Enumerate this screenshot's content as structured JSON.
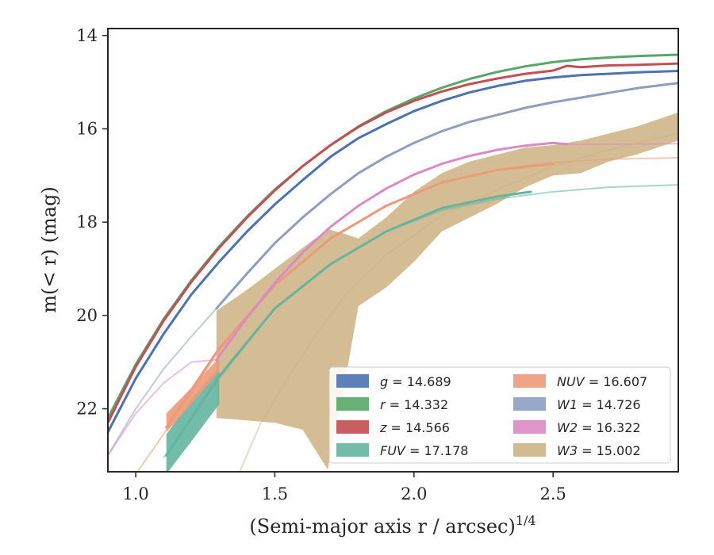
{
  "chart_data": {
    "type": "line",
    "title": "",
    "xlabel": "(Semi-major axis r / arcsec)",
    "xlabel_sup": "1/4",
    "ylabel": "m(< r) (mag)",
    "xlim": [
      0.9,
      2.95
    ],
    "ylim": [
      23.35,
      13.85
    ],
    "y_inverted": true,
    "grid": false,
    "legend_position": "lower-right",
    "xticks": [
      {
        "value": 1.0,
        "label": "1.0"
      },
      {
        "value": 1.5,
        "label": "1.5"
      },
      {
        "value": 2.0,
        "label": "2.0"
      },
      {
        "value": 2.5,
        "label": "2.5"
      }
    ],
    "yticks": [
      {
        "value": 14,
        "label": "14"
      },
      {
        "value": 16,
        "label": "16"
      },
      {
        "value": 18,
        "label": "18"
      },
      {
        "value": 20,
        "label": "20"
      },
      {
        "value": 22,
        "label": "22"
      }
    ],
    "series": [
      {
        "name": "g = 14.689",
        "label_var": "g",
        "label_val": "= 14.689",
        "color": "#4c72b0",
        "solid_x": [
          0.9,
          1.0,
          1.1,
          1.2,
          1.3,
          1.4,
          1.5,
          1.6,
          1.7,
          1.8,
          1.9,
          2.0,
          2.1,
          2.2,
          2.3,
          2.4,
          2.5,
          2.6,
          2.7,
          2.8,
          2.95
        ],
        "solid_y": [
          22.5,
          21.35,
          20.4,
          19.55,
          18.85,
          18.2,
          17.62,
          17.1,
          16.6,
          16.2,
          15.9,
          15.62,
          15.4,
          15.22,
          15.08,
          14.97,
          14.9,
          14.85,
          14.82,
          14.79,
          14.76
        ]
      },
      {
        "name": "r = 14.332",
        "label_var": "r",
        "label_val": "= 14.332",
        "color": "#55a868",
        "solid_x": [
          0.9,
          1.0,
          1.1,
          1.2,
          1.3,
          1.4,
          1.5,
          1.6,
          1.7,
          1.8,
          1.9,
          2.0,
          2.1,
          2.2,
          2.3,
          2.4,
          2.5,
          2.6,
          2.7,
          2.8,
          2.95
        ],
        "solid_y": [
          22.2,
          21.05,
          20.08,
          19.25,
          18.52,
          17.88,
          17.3,
          16.8,
          16.35,
          15.95,
          15.62,
          15.35,
          15.12,
          14.93,
          14.78,
          14.66,
          14.57,
          14.51,
          14.47,
          14.44,
          14.41
        ]
      },
      {
        "name": "z = 14.566",
        "label_var": "z",
        "label_val": "= 14.566",
        "color": "#c44e52",
        "solid_x": [
          0.9,
          1.0,
          1.1,
          1.2,
          1.3,
          1.4,
          1.5,
          1.6,
          1.7,
          1.8,
          1.9,
          2.0,
          2.1,
          2.2,
          2.3,
          2.4,
          2.5,
          2.55,
          2.6,
          2.7,
          2.8,
          2.95
        ],
        "solid_y": [
          22.3,
          21.1,
          20.12,
          19.28,
          18.55,
          17.9,
          17.32,
          16.8,
          16.35,
          15.96,
          15.65,
          15.4,
          15.2,
          15.04,
          14.92,
          14.82,
          14.75,
          14.65,
          14.68,
          14.64,
          14.63,
          14.6
        ]
      },
      {
        "name": "FUV = 17.178",
        "label_var": "FUV",
        "label_val": "= 17.178",
        "color": "#64b5a0",
        "solid_x": [
          1.11,
          1.3,
          1.5,
          1.7,
          1.9,
          2.1,
          2.3,
          2.42
        ],
        "solid_y": [
          23.0,
          21.3,
          19.85,
          18.9,
          18.2,
          17.7,
          17.45,
          17.35
        ],
        "faint_x": [
          1.1,
          1.3,
          1.5,
          1.7,
          1.9,
          2.1,
          2.3,
          2.5,
          2.7,
          2.95
        ],
        "faint_y": [
          23.05,
          21.35,
          19.85,
          18.9,
          18.2,
          17.75,
          17.5,
          17.35,
          17.25,
          17.2
        ],
        "band_x": [
          1.11,
          1.2,
          1.3
        ],
        "band_upper": [
          22.55,
          21.8,
          21.1
        ],
        "band_lower": [
          23.4,
          22.7,
          21.9
        ]
      },
      {
        "name": "NUV = 16.607",
        "label_var": "NUV",
        "label_val": "= 16.607",
        "color": "#ed9a7a",
        "solid_x": [
          1.11,
          1.3,
          1.5,
          1.7,
          1.9,
          2.1,
          2.3,
          2.5
        ],
        "solid_y": [
          22.4,
          20.7,
          19.35,
          18.35,
          17.65,
          17.15,
          16.88,
          16.75
        ],
        "faint_x": [
          1.0,
          1.1,
          1.3,
          1.5,
          1.7,
          1.9,
          2.1,
          2.3,
          2.5,
          2.7,
          2.95
        ],
        "faint_y": [
          23.4,
          22.55,
          20.75,
          19.35,
          18.35,
          17.65,
          17.15,
          16.88,
          16.72,
          16.65,
          16.62
        ],
        "band_x": [
          1.11,
          1.2,
          1.3
        ],
        "band_upper": [
          22.1,
          21.55,
          20.9
        ],
        "band_lower": [
          22.5,
          21.9,
          21.2
        ]
      },
      {
        "name": "W1 = 14.726",
        "label_var": "W1",
        "label_val": "= 14.726",
        "color": "#8c9ec4",
        "solid_x": [
          1.29,
          1.4,
          1.5,
          1.6,
          1.7,
          1.8,
          1.9,
          2.0,
          2.1,
          2.2,
          2.3,
          2.4,
          2.5,
          2.6,
          2.7,
          2.8,
          2.95
        ],
        "solid_y": [
          19.85,
          19.1,
          18.45,
          17.9,
          17.4,
          16.95,
          16.6,
          16.3,
          16.05,
          15.85,
          15.7,
          15.55,
          15.43,
          15.33,
          15.23,
          15.13,
          15.02
        ],
        "faint_x": [
          0.9,
          1.0,
          1.1,
          1.2,
          1.29
        ],
        "faint_y": [
          23.0,
          22.0,
          21.15,
          20.45,
          19.85
        ]
      },
      {
        "name": "W2 = 16.322",
        "label_var": "W2",
        "label_val": "= 16.322",
        "color": "#da8bc3",
        "solid_x": [
          1.29,
          1.4,
          1.5,
          1.6,
          1.7,
          1.8,
          1.9,
          2.0,
          2.1,
          2.2,
          2.3,
          2.4,
          2.5,
          2.55
        ],
        "solid_y": [
          20.95,
          20.05,
          19.3,
          18.65,
          18.1,
          17.65,
          17.28,
          16.98,
          16.75,
          16.58,
          16.45,
          16.36,
          16.3,
          16.33
        ],
        "faint_x": [
          0.9,
          1.0,
          1.1,
          1.2,
          1.29,
          2.55,
          2.7,
          2.95
        ],
        "faint_y": [
          23.0,
          22.1,
          21.45,
          21.0,
          20.95,
          16.33,
          16.33,
          16.32
        ],
        "faint_split": 5
      },
      {
        "name": "W3 = 15.002",
        "label_var": "W3",
        "label_val": "= 15.002",
        "color": "#ccb281",
        "band_x": [
          1.29,
          1.4,
          1.5,
          1.6,
          1.69,
          1.75,
          1.8,
          1.9,
          2.0,
          2.1,
          2.2,
          2.3,
          2.4,
          2.5,
          2.6,
          2.7,
          2.8,
          2.95
        ],
        "band_upper": [
          19.9,
          19.45,
          19.0,
          18.55,
          18.15,
          18.25,
          18.35,
          17.9,
          17.35,
          16.95,
          16.7,
          16.55,
          16.4,
          16.35,
          16.25,
          16.1,
          15.95,
          15.65
        ],
        "band_lower": [
          22.2,
          22.25,
          22.3,
          22.45,
          23.3,
          21.5,
          19.8,
          19.4,
          18.85,
          18.2,
          17.9,
          17.6,
          17.25,
          17.0,
          16.95,
          16.7,
          16.55,
          16.25
        ],
        "faint_x": [
          1.37,
          1.45,
          1.55,
          1.65,
          1.75,
          1.9,
          2.1,
          2.3,
          2.5,
          2.7,
          2.95
        ],
        "faint_y": [
          23.4,
          22.3,
          21.3,
          20.4,
          19.6,
          18.7,
          17.85,
          17.3,
          16.8,
          16.45,
          16.1
        ]
      }
    ]
  }
}
